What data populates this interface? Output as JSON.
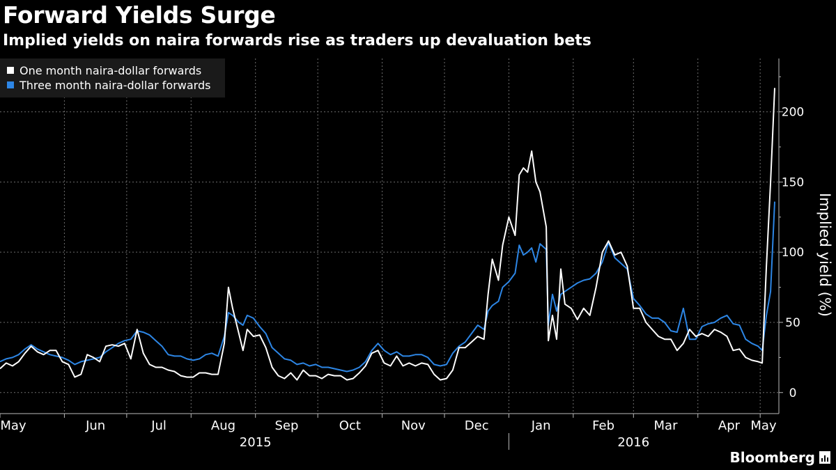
{
  "header": {
    "title": "Forward Yields Surge",
    "subtitle": "Implied yields on naira forwards rise as traders up devaluation bets"
  },
  "brand": {
    "name": "Bloomberg"
  },
  "colors": {
    "background": "#000000",
    "series1": "#ffffff",
    "series2": "#2d86e5",
    "grid": "#6e6e6e"
  },
  "chart_data": {
    "type": "line",
    "title": "Forward Yields Surge",
    "subtitle": "Implied yields on naira forwards rise as traders up devaluation bets",
    "ylabel": "Implied yield (%)",
    "xlabel": "",
    "ylim": [
      -15,
      238
    ],
    "yticks": [
      0,
      50,
      100,
      150,
      200
    ],
    "grid": true,
    "legend_position": "top-left",
    "x_start": "2015-05-01",
    "x_end": "2016-05-10",
    "month_ticks": [
      {
        "label": "May",
        "date": "2015-05-01"
      },
      {
        "label": "Jun",
        "date": "2015-06-01"
      },
      {
        "label": "Jul",
        "date": "2015-07-01"
      },
      {
        "label": "Aug",
        "date": "2015-08-01"
      },
      {
        "label": "Sep",
        "date": "2015-09-01"
      },
      {
        "label": "Oct",
        "date": "2015-10-01"
      },
      {
        "label": "Nov",
        "date": "2015-11-01"
      },
      {
        "label": "Dec",
        "date": "2015-12-01"
      },
      {
        "label": "Jan",
        "date": "2016-01-01"
      },
      {
        "label": "Feb",
        "date": "2016-02-01"
      },
      {
        "label": "Mar",
        "date": "2016-03-01"
      },
      {
        "label": "Apr",
        "date": "2016-04-01"
      },
      {
        "label": "May",
        "date": "2016-05-01"
      }
    ],
    "year_labels": [
      {
        "label": "2015",
        "date": "2015-09-01"
      },
      {
        "label": "2016",
        "date": "2016-03-01"
      }
    ],
    "series": [
      {
        "name": "One month naira-dollar forwards",
        "points": [
          [
            "2015-05-01",
            17
          ],
          [
            "2015-05-04",
            21
          ],
          [
            "2015-05-07",
            19
          ],
          [
            "2015-05-10",
            22
          ],
          [
            "2015-05-13",
            28
          ],
          [
            "2015-05-16",
            33
          ],
          [
            "2015-05-19",
            29
          ],
          [
            "2015-05-22",
            27
          ],
          [
            "2015-05-25",
            30
          ],
          [
            "2015-05-28",
            30
          ],
          [
            "2015-05-31",
            22
          ],
          [
            "2015-06-03",
            20
          ],
          [
            "2015-06-06",
            11
          ],
          [
            "2015-06-09",
            13
          ],
          [
            "2015-06-12",
            27
          ],
          [
            "2015-06-15",
            25
          ],
          [
            "2015-06-18",
            22
          ],
          [
            "2015-06-21",
            33
          ],
          [
            "2015-06-24",
            34
          ],
          [
            "2015-06-27",
            33
          ],
          [
            "2015-06-30",
            35
          ],
          [
            "2015-07-03",
            24
          ],
          [
            "2015-07-06",
            45
          ],
          [
            "2015-07-09",
            28
          ],
          [
            "2015-07-12",
            20
          ],
          [
            "2015-07-15",
            18
          ],
          [
            "2015-07-18",
            18
          ],
          [
            "2015-07-21",
            16
          ],
          [
            "2015-07-24",
            15
          ],
          [
            "2015-07-27",
            12
          ],
          [
            "2015-07-30",
            11
          ],
          [
            "2015-08-02",
            11
          ],
          [
            "2015-08-05",
            14
          ],
          [
            "2015-08-08",
            14
          ],
          [
            "2015-08-11",
            13
          ],
          [
            "2015-08-14",
            13
          ],
          [
            "2015-08-17",
            35
          ],
          [
            "2015-08-19",
            75
          ],
          [
            "2015-08-21",
            60
          ],
          [
            "2015-08-24",
            42
          ],
          [
            "2015-08-26",
            30
          ],
          [
            "2015-08-28",
            45
          ],
          [
            "2015-08-31",
            40
          ],
          [
            "2015-09-03",
            41
          ],
          [
            "2015-09-06",
            32
          ],
          [
            "2015-09-09",
            18
          ],
          [
            "2015-09-12",
            12
          ],
          [
            "2015-09-15",
            10
          ],
          [
            "2015-09-18",
            14
          ],
          [
            "2015-09-21",
            9
          ],
          [
            "2015-09-24",
            16
          ],
          [
            "2015-09-27",
            12
          ],
          [
            "2015-09-30",
            12
          ],
          [
            "2015-10-03",
            10
          ],
          [
            "2015-10-06",
            13
          ],
          [
            "2015-10-09",
            12
          ],
          [
            "2015-10-12",
            12
          ],
          [
            "2015-10-15",
            9
          ],
          [
            "2015-10-18",
            10
          ],
          [
            "2015-10-21",
            14
          ],
          [
            "2015-10-24",
            19
          ],
          [
            "2015-10-27",
            28
          ],
          [
            "2015-10-30",
            30
          ],
          [
            "2015-11-02",
            21
          ],
          [
            "2015-11-05",
            19
          ],
          [
            "2015-11-08",
            26
          ],
          [
            "2015-11-11",
            19
          ],
          [
            "2015-11-14",
            21
          ],
          [
            "2015-11-17",
            19
          ],
          [
            "2015-11-20",
            21
          ],
          [
            "2015-11-23",
            20
          ],
          [
            "2015-11-26",
            13
          ],
          [
            "2015-11-29",
            9
          ],
          [
            "2015-12-02",
            10
          ],
          [
            "2015-12-05",
            16
          ],
          [
            "2015-12-08",
            32
          ],
          [
            "2015-12-11",
            32
          ],
          [
            "2015-12-14",
            36
          ],
          [
            "2015-12-17",
            40
          ],
          [
            "2015-12-20",
            38
          ],
          [
            "2015-12-22",
            70
          ],
          [
            "2015-12-24",
            95
          ],
          [
            "2015-12-27",
            80
          ],
          [
            "2015-12-29",
            105
          ],
          [
            "2016-01-01",
            125
          ],
          [
            "2016-01-04",
            112
          ],
          [
            "2016-01-06",
            155
          ],
          [
            "2016-01-08",
            160
          ],
          [
            "2016-01-10",
            157
          ],
          [
            "2016-01-12",
            172
          ],
          [
            "2016-01-14",
            150
          ],
          [
            "2016-01-16",
            143
          ],
          [
            "2016-01-19",
            118
          ],
          [
            "2016-01-20",
            37
          ],
          [
            "2016-01-22",
            55
          ],
          [
            "2016-01-24",
            38
          ],
          [
            "2016-01-26",
            88
          ],
          [
            "2016-01-28",
            63
          ],
          [
            "2016-01-31",
            60
          ],
          [
            "2016-02-03",
            52
          ],
          [
            "2016-02-06",
            60
          ],
          [
            "2016-02-09",
            55
          ],
          [
            "2016-02-12",
            75
          ],
          [
            "2016-02-15",
            100
          ],
          [
            "2016-02-18",
            108
          ],
          [
            "2016-02-21",
            98
          ],
          [
            "2016-02-24",
            100
          ],
          [
            "2016-02-27",
            90
          ],
          [
            "2016-03-01",
            60
          ],
          [
            "2016-03-04",
            60
          ],
          [
            "2016-03-07",
            50
          ],
          [
            "2016-03-10",
            45
          ],
          [
            "2016-03-13",
            40
          ],
          [
            "2016-03-16",
            38
          ],
          [
            "2016-03-19",
            38
          ],
          [
            "2016-03-22",
            30
          ],
          [
            "2016-03-25",
            35
          ],
          [
            "2016-03-28",
            45
          ],
          [
            "2016-03-31",
            40
          ],
          [
            "2016-04-03",
            42
          ],
          [
            "2016-04-06",
            40
          ],
          [
            "2016-04-09",
            45
          ],
          [
            "2016-04-12",
            43
          ],
          [
            "2016-04-15",
            40
          ],
          [
            "2016-04-18",
            30
          ],
          [
            "2016-04-21",
            31
          ],
          [
            "2016-04-24",
            25
          ],
          [
            "2016-04-27",
            23
          ],
          [
            "2016-04-30",
            22
          ],
          [
            "2016-05-02",
            21
          ],
          [
            "2016-05-04",
            90
          ],
          [
            "2016-05-06",
            150
          ],
          [
            "2016-05-08",
            217
          ]
        ]
      },
      {
        "name": "Three month naira-dollar forwards",
        "points": [
          [
            "2015-05-01",
            22
          ],
          [
            "2015-05-04",
            24
          ],
          [
            "2015-05-07",
            25
          ],
          [
            "2015-05-10",
            27
          ],
          [
            "2015-05-13",
            31
          ],
          [
            "2015-05-16",
            34
          ],
          [
            "2015-05-19",
            31
          ],
          [
            "2015-05-22",
            29
          ],
          [
            "2015-05-25",
            27
          ],
          [
            "2015-05-28",
            26
          ],
          [
            "2015-05-31",
            25
          ],
          [
            "2015-06-03",
            23
          ],
          [
            "2015-06-06",
            20
          ],
          [
            "2015-06-09",
            22
          ],
          [
            "2015-06-12",
            23
          ],
          [
            "2015-06-15",
            24
          ],
          [
            "2015-06-18",
            25
          ],
          [
            "2015-06-21",
            29
          ],
          [
            "2015-06-24",
            32
          ],
          [
            "2015-06-27",
            35
          ],
          [
            "2015-06-30",
            37
          ],
          [
            "2015-07-03",
            38
          ],
          [
            "2015-07-06",
            44
          ],
          [
            "2015-07-09",
            43
          ],
          [
            "2015-07-12",
            41
          ],
          [
            "2015-07-15",
            37
          ],
          [
            "2015-07-18",
            33
          ],
          [
            "2015-07-21",
            27
          ],
          [
            "2015-07-24",
            26
          ],
          [
            "2015-07-27",
            26
          ],
          [
            "2015-07-30",
            24
          ],
          [
            "2015-08-02",
            23
          ],
          [
            "2015-08-05",
            24
          ],
          [
            "2015-08-08",
            27
          ],
          [
            "2015-08-11",
            28
          ],
          [
            "2015-08-14",
            26
          ],
          [
            "2015-08-17",
            40
          ],
          [
            "2015-08-19",
            57
          ],
          [
            "2015-08-21",
            55
          ],
          [
            "2015-08-24",
            50
          ],
          [
            "2015-08-26",
            48
          ],
          [
            "2015-08-28",
            55
          ],
          [
            "2015-08-31",
            53
          ],
          [
            "2015-09-03",
            47
          ],
          [
            "2015-09-06",
            42
          ],
          [
            "2015-09-09",
            32
          ],
          [
            "2015-09-12",
            28
          ],
          [
            "2015-09-15",
            24
          ],
          [
            "2015-09-18",
            23
          ],
          [
            "2015-09-21",
            20
          ],
          [
            "2015-09-24",
            21
          ],
          [
            "2015-09-27",
            19
          ],
          [
            "2015-09-30",
            20
          ],
          [
            "2015-10-03",
            18
          ],
          [
            "2015-10-06",
            18
          ],
          [
            "2015-10-09",
            17
          ],
          [
            "2015-10-12",
            16
          ],
          [
            "2015-10-15",
            15
          ],
          [
            "2015-10-18",
            16
          ],
          [
            "2015-10-21",
            18
          ],
          [
            "2015-10-24",
            22
          ],
          [
            "2015-10-27",
            30
          ],
          [
            "2015-10-30",
            35
          ],
          [
            "2015-11-02",
            30
          ],
          [
            "2015-11-05",
            27
          ],
          [
            "2015-11-08",
            29
          ],
          [
            "2015-11-11",
            26
          ],
          [
            "2015-11-14",
            26
          ],
          [
            "2015-11-17",
            27
          ],
          [
            "2015-11-20",
            27
          ],
          [
            "2015-11-23",
            25
          ],
          [
            "2015-11-26",
            20
          ],
          [
            "2015-11-29",
            19
          ],
          [
            "2015-12-02",
            20
          ],
          [
            "2015-12-05",
            28
          ],
          [
            "2015-12-08",
            33
          ],
          [
            "2015-12-11",
            36
          ],
          [
            "2015-12-14",
            42
          ],
          [
            "2015-12-17",
            48
          ],
          [
            "2015-12-20",
            45
          ],
          [
            "2015-12-22",
            58
          ],
          [
            "2015-12-24",
            62
          ],
          [
            "2015-12-27",
            65
          ],
          [
            "2015-12-29",
            75
          ],
          [
            "2016-01-01",
            79
          ],
          [
            "2016-01-04",
            85
          ],
          [
            "2016-01-06",
            105
          ],
          [
            "2016-01-08",
            98
          ],
          [
            "2016-01-10",
            100
          ],
          [
            "2016-01-12",
            103
          ],
          [
            "2016-01-14",
            93
          ],
          [
            "2016-01-16",
            106
          ],
          [
            "2016-01-19",
            102
          ],
          [
            "2016-01-20",
            48
          ],
          [
            "2016-01-22",
            70
          ],
          [
            "2016-01-24",
            58
          ],
          [
            "2016-01-26",
            70
          ],
          [
            "2016-01-28",
            72
          ],
          [
            "2016-01-31",
            75
          ],
          [
            "2016-02-03",
            78
          ],
          [
            "2016-02-06",
            80
          ],
          [
            "2016-02-09",
            81
          ],
          [
            "2016-02-12",
            85
          ],
          [
            "2016-02-15",
            93
          ],
          [
            "2016-02-18",
            107
          ],
          [
            "2016-02-21",
            96
          ],
          [
            "2016-02-24",
            92
          ],
          [
            "2016-02-27",
            88
          ],
          [
            "2016-03-01",
            67
          ],
          [
            "2016-03-04",
            62
          ],
          [
            "2016-03-07",
            56
          ],
          [
            "2016-03-10",
            53
          ],
          [
            "2016-03-13",
            53
          ],
          [
            "2016-03-16",
            50
          ],
          [
            "2016-03-19",
            44
          ],
          [
            "2016-03-22",
            43
          ],
          [
            "2016-03-25",
            60
          ],
          [
            "2016-03-28",
            38
          ],
          [
            "2016-03-31",
            38
          ],
          [
            "2016-04-03",
            47
          ],
          [
            "2016-04-06",
            49
          ],
          [
            "2016-04-09",
            50
          ],
          [
            "2016-04-12",
            53
          ],
          [
            "2016-04-15",
            55
          ],
          [
            "2016-04-18",
            49
          ],
          [
            "2016-04-21",
            48
          ],
          [
            "2016-04-24",
            38
          ],
          [
            "2016-04-27",
            35
          ],
          [
            "2016-04-30",
            33
          ],
          [
            "2016-05-02",
            30
          ],
          [
            "2016-05-04",
            55
          ],
          [
            "2016-05-06",
            72
          ],
          [
            "2016-05-08",
            136
          ]
        ]
      }
    ]
  }
}
